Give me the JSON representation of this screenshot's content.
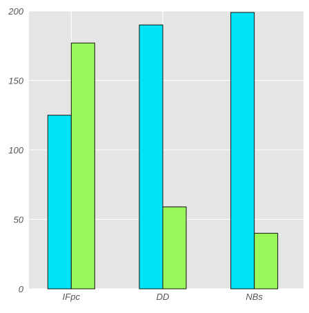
{
  "chart_data": {
    "type": "bar",
    "categories": [
      "IFpc",
      "DD",
      "NBs"
    ],
    "series": [
      {
        "values": [
          125,
          190,
          199
        ]
      },
      {
        "values": [
          177,
          59,
          40
        ]
      }
    ],
    "ylim": [
      0,
      200
    ],
    "yticks": [
      0,
      50,
      100,
      150,
      200
    ],
    "grid": true,
    "colors": {
      "series": [
        "#00e5f5",
        "#9af75a"
      ],
      "background": "#e5e5e5",
      "grid": "#ffffff",
      "bar_edge": "#111111",
      "tick_text": "#555555"
    }
  }
}
